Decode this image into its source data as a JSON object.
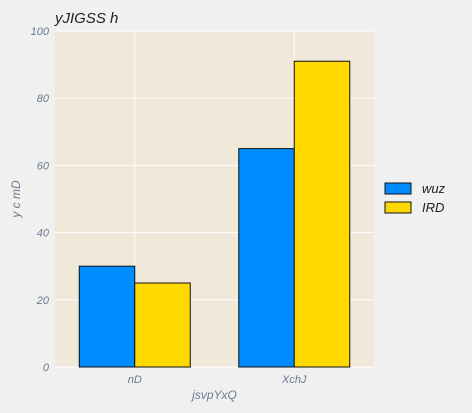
{
  "chart_data": {
    "type": "bar",
    "title": "yJIGSS h",
    "xlabel": "jsvpYxQ",
    "ylabel": "y c mD",
    "categories": [
      "nD",
      "XchJ"
    ],
    "series": [
      {
        "name": "wuz",
        "values": [
          30,
          65
        ],
        "color": "#008cff"
      },
      {
        "name": "IRD",
        "values": [
          25,
          91
        ],
        "color": "#ffd800"
      }
    ],
    "ylim": [
      0,
      100
    ],
    "yticks": [
      0,
      20,
      40,
      60,
      80,
      100
    ],
    "grid": true,
    "legend_position": "right",
    "plot_background": "#f0e8d8",
    "bar_edge_color": "#111111"
  }
}
